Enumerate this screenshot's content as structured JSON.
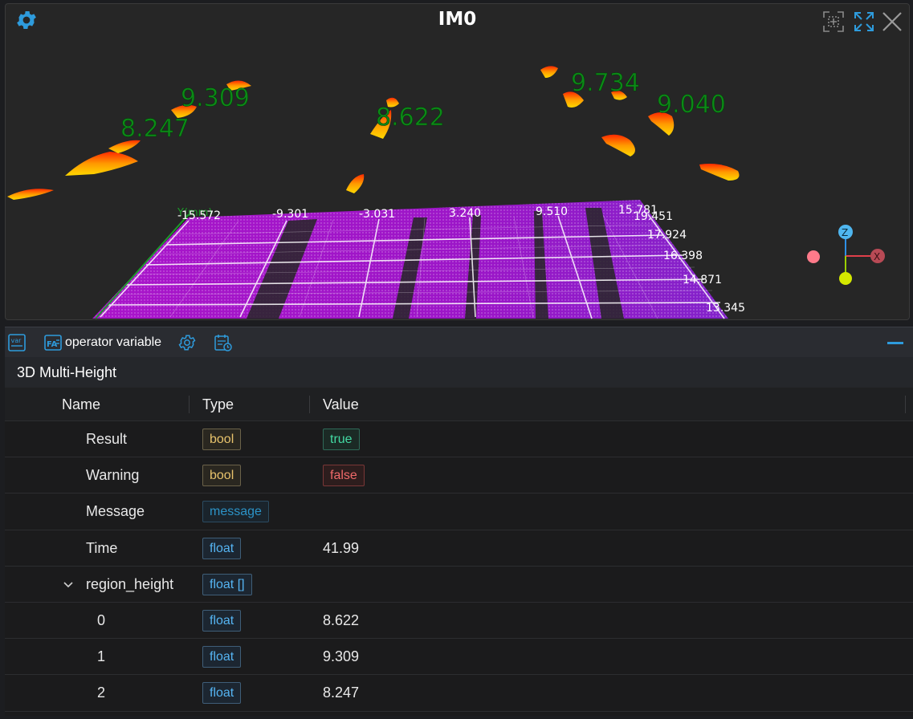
{
  "viewer": {
    "title": "IM0",
    "icons": [
      "gear-icon",
      "fit-view-icon",
      "expand-icon",
      "close-icon"
    ],
    "axis_tag": "Y(mm)",
    "x_ticks": [
      "-15.572",
      "-9.301",
      "-3.031",
      "3.240",
      "9.510",
      "15.781"
    ],
    "y_ticks": [
      "19.451",
      "17.924",
      "16.398",
      "14.871",
      "13.345"
    ],
    "region_labels": [
      "9.309",
      "8.247",
      "8.622",
      "9.734",
      "9.040"
    ],
    "label_color": "#0c8a17",
    "ground_color": "#b313d6"
  },
  "toolbar": {
    "var_icon_text": "var",
    "operator_label": "operator variable",
    "icons": [
      "var-icon",
      "operator-variable-icon",
      "settings-icon",
      "schedule-icon",
      "collapse-icon"
    ]
  },
  "section_title": "3D Multi-Height",
  "table": {
    "headers": {
      "name": "Name",
      "type": "Type",
      "value": "Value"
    },
    "rows": [
      {
        "name": "Result",
        "type": "bool",
        "value": "true"
      },
      {
        "name": "Warning",
        "type": "bool",
        "value": "false"
      },
      {
        "name": "Message",
        "type": "message",
        "value": ""
      },
      {
        "name": "Time",
        "type": "float",
        "value": "41.99"
      },
      {
        "name": "region_height",
        "type": "float []",
        "value": ""
      },
      {
        "name": "0",
        "type": "float",
        "value": "8.622"
      },
      {
        "name": "1",
        "type": "float",
        "value": "9.309"
      },
      {
        "name": "2",
        "type": "float",
        "value": "8.247"
      }
    ]
  }
}
